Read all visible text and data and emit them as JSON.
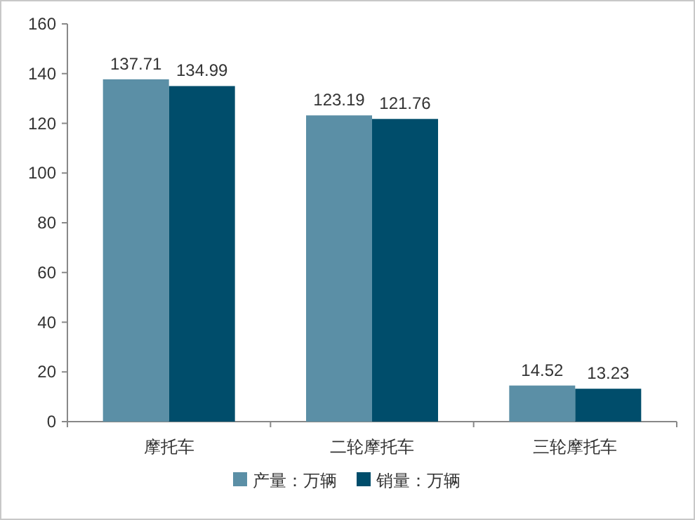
{
  "chart_data": {
    "type": "bar",
    "categories": [
      "摩托车",
      "二轮摩托车",
      "三轮摩托车"
    ],
    "series": [
      {
        "name": "产量：万辆",
        "color": "#5b8fa6",
        "values": [
          137.71,
          123.19,
          14.52
        ]
      },
      {
        "name": "销量：万辆",
        "color": "#004d6b",
        "values": [
          134.99,
          121.76,
          13.23
        ]
      }
    ],
    "ylim": [
      0,
      160
    ],
    "yticks": [
      0,
      20,
      40,
      60,
      80,
      100,
      120,
      140,
      160
    ],
    "data_labels": true,
    "legend": "bottom",
    "grid": false
  }
}
